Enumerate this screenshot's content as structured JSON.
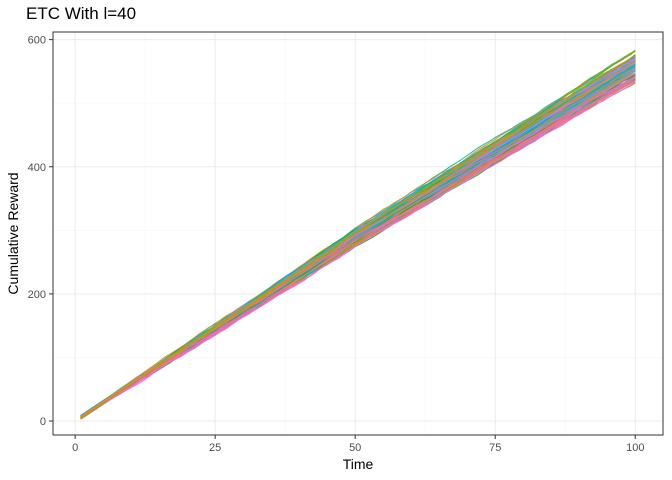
{
  "chart_data": {
    "type": "line",
    "title": "ETC With l=40",
    "xlabel": "Time",
    "ylabel": "Cumulative Reward",
    "xlim": [
      -3.95,
      104.95
    ],
    "ylim": [
      -22,
      612
    ],
    "xticks": [
      0,
      25,
      50,
      75,
      100
    ],
    "yticks": [
      0,
      200,
      400,
      600
    ],
    "grid": true,
    "legend": "none",
    "x_range": [
      1,
      100
    ],
    "series_count": 100,
    "y_at_x1": [
      3,
      9
    ],
    "y_at_x50": [
      270,
      305
    ],
    "y_at_x100": [
      530,
      585
    ],
    "series_colors": [
      "#F8766D",
      "#E68613",
      "#CD9600",
      "#ABA300",
      "#7CAE00",
      "#0CB702",
      "#00BE67",
      "#00C19A",
      "#00BFC4",
      "#00B8E7",
      "#00A9FF",
      "#8494FF",
      "#C77CFF",
      "#ED68ED",
      "#FF61CC",
      "#FF68A1"
    ]
  }
}
